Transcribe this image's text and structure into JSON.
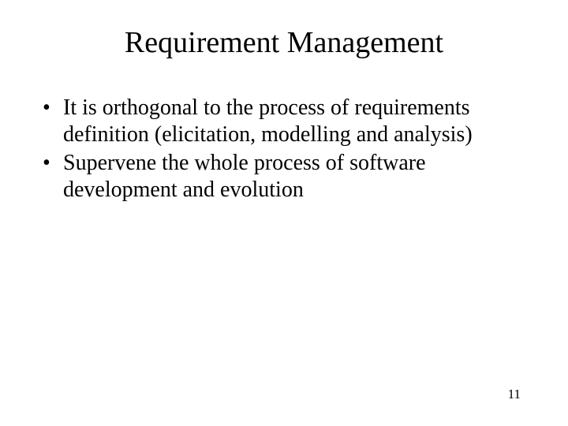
{
  "slide": {
    "title": "Requirement Management",
    "bullets": [
      "It is orthogonal to the process of requirements definition (elicitation, modelling and analysis)",
      "Supervene the whole process of software development and evolution"
    ],
    "page_number": "11",
    "background_color": "#ffffff",
    "text_color": "#000000",
    "title_fontsize": 38,
    "body_fontsize": 28,
    "pagenum_fontsize": 17,
    "font_family": "Times New Roman"
  }
}
